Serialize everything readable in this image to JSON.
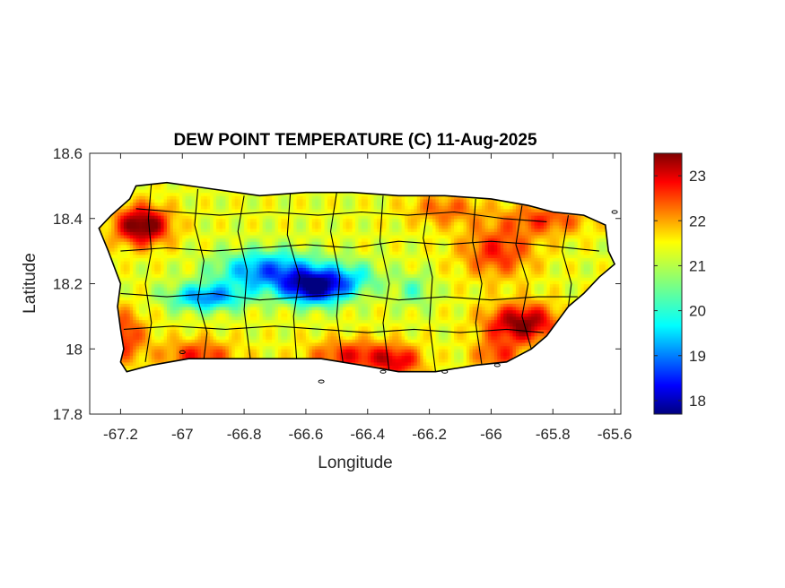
{
  "chart_data": {
    "type": "heatmap",
    "title": "DEW POINT TEMPERATURE (C) 11-Aug-2025",
    "xlabel": "Longitude",
    "ylabel": "Latitude",
    "xlim": [
      -67.3,
      -65.58
    ],
    "ylim": [
      17.8,
      18.6
    ],
    "xticks": [
      -67.2,
      -67,
      -66.8,
      -66.6,
      -66.4,
      -66.2,
      -66,
      -65.8,
      -65.6
    ],
    "xtick_labels": [
      "-67.2",
      "-67",
      "-66.8",
      "-66.6",
      "-66.4",
      "-66.2",
      "-66",
      "-65.8",
      "-65.6"
    ],
    "yticks": [
      17.8,
      18,
      18.2,
      18.4,
      18.6
    ],
    "ytick_labels": [
      "17.8",
      "18",
      "18.2",
      "18.4",
      "18.6"
    ],
    "colorbar": {
      "colormap": "jet",
      "range": [
        17.7,
        23.5
      ],
      "ticks": [
        18,
        19,
        20,
        21,
        22,
        23
      ],
      "tick_labels": [
        "18",
        "19",
        "20",
        "21",
        "22",
        "23"
      ]
    },
    "grid": false,
    "field": {
      "base": 21.2,
      "anomalies": [
        {
          "lon": -66.57,
          "lat": 18.19,
          "amp": -3.4,
          "rx": 0.1,
          "ry": 0.05
        },
        {
          "lon": -66.72,
          "lat": 18.24,
          "amp": -2.2,
          "rx": 0.16,
          "ry": 0.06
        },
        {
          "lon": -66.92,
          "lat": 18.16,
          "amp": -2.0,
          "rx": 0.12,
          "ry": 0.04
        },
        {
          "lon": -66.45,
          "lat": 18.22,
          "amp": -1.0,
          "rx": 0.1,
          "ry": 0.05
        },
        {
          "lon": -66.25,
          "lat": 18.18,
          "amp": -0.8,
          "rx": 0.06,
          "ry": 0.05
        },
        {
          "lon": -67.13,
          "lat": 18.38,
          "amp": 2.6,
          "rx": 0.09,
          "ry": 0.06
        },
        {
          "lon": -67.2,
          "lat": 18.04,
          "amp": 1.5,
          "rx": 0.08,
          "ry": 0.08
        },
        {
          "lon": -66.95,
          "lat": 17.98,
          "amp": 1.4,
          "rx": 0.12,
          "ry": 0.05
        },
        {
          "lon": -66.45,
          "lat": 17.98,
          "amp": 1.5,
          "rx": 0.14,
          "ry": 0.05
        },
        {
          "lon": -66.3,
          "lat": 17.96,
          "amp": 1.4,
          "rx": 0.08,
          "ry": 0.05
        },
        {
          "lon": -65.9,
          "lat": 18.08,
          "amp": 2.3,
          "rx": 0.12,
          "ry": 0.06
        },
        {
          "lon": -65.98,
          "lat": 18.3,
          "amp": 1.4,
          "rx": 0.12,
          "ry": 0.08
        },
        {
          "lon": -65.82,
          "lat": 18.4,
          "amp": 1.2,
          "rx": 0.14,
          "ry": 0.05
        },
        {
          "lon": -66.15,
          "lat": 18.43,
          "amp": 1.0,
          "rx": 0.12,
          "ry": 0.05
        },
        {
          "lon": -65.98,
          "lat": 17.98,
          "amp": 1.2,
          "rx": 0.08,
          "ry": 0.05
        }
      ]
    },
    "island_outline": [
      [
        -67.27,
        18.37
      ],
      [
        -67.23,
        18.41
      ],
      [
        -67.17,
        18.46
      ],
      [
        -67.15,
        18.5
      ],
      [
        -67.05,
        18.51
      ],
      [
        -66.9,
        18.49
      ],
      [
        -66.75,
        18.47
      ],
      [
        -66.6,
        18.48
      ],
      [
        -66.45,
        18.48
      ],
      [
        -66.3,
        18.47
      ],
      [
        -66.15,
        18.47
      ],
      [
        -66.0,
        18.46
      ],
      [
        -65.88,
        18.44
      ],
      [
        -65.8,
        18.42
      ],
      [
        -65.7,
        18.41
      ],
      [
        -65.63,
        18.38
      ],
      [
        -65.62,
        18.3
      ],
      [
        -65.6,
        18.26
      ],
      [
        -65.65,
        18.22
      ],
      [
        -65.7,
        18.17
      ],
      [
        -65.75,
        18.13
      ],
      [
        -65.82,
        18.04
      ],
      [
        -65.87,
        18.0
      ],
      [
        -65.95,
        17.96
      ],
      [
        -66.05,
        17.95
      ],
      [
        -66.18,
        17.93
      ],
      [
        -66.3,
        17.93
      ],
      [
        -66.42,
        17.95
      ],
      [
        -66.55,
        17.97
      ],
      [
        -66.7,
        17.97
      ],
      [
        -66.85,
        17.97
      ],
      [
        -66.98,
        17.97
      ],
      [
        -67.1,
        17.95
      ],
      [
        -67.18,
        17.93
      ],
      [
        -67.2,
        17.96
      ],
      [
        -67.19,
        18.0
      ],
      [
        -67.2,
        18.06
      ],
      [
        -67.21,
        18.13
      ],
      [
        -67.2,
        18.2
      ],
      [
        -67.24,
        18.3
      ],
      [
        -67.27,
        18.37
      ]
    ],
    "municipal_boundaries": [
      [
        [
          -67.1,
          18.51
        ],
        [
          -67.11,
          18.4
        ],
        [
          -67.1,
          18.3
        ],
        [
          -67.12,
          18.2
        ],
        [
          -67.1,
          18.08
        ],
        [
          -67.12,
          17.96
        ]
      ],
      [
        [
          -66.95,
          18.49
        ],
        [
          -66.96,
          18.38
        ],
        [
          -66.93,
          18.27
        ],
        [
          -66.95,
          18.15
        ],
        [
          -66.92,
          18.05
        ],
        [
          -66.93,
          17.97
        ]
      ],
      [
        [
          -66.8,
          18.47
        ],
        [
          -66.82,
          18.36
        ],
        [
          -66.79,
          18.24
        ],
        [
          -66.8,
          18.12
        ],
        [
          -66.78,
          17.97
        ]
      ],
      [
        [
          -66.65,
          18.48
        ],
        [
          -66.66,
          18.35
        ],
        [
          -66.62,
          18.22
        ],
        [
          -66.64,
          18.1
        ],
        [
          -66.63,
          17.97
        ]
      ],
      [
        [
          -66.5,
          18.48
        ],
        [
          -66.52,
          18.36
        ],
        [
          -66.49,
          18.22
        ],
        [
          -66.5,
          18.1
        ],
        [
          -66.48,
          17.96
        ]
      ],
      [
        [
          -66.35,
          18.47
        ],
        [
          -66.36,
          18.33
        ],
        [
          -66.33,
          18.2
        ],
        [
          -66.35,
          18.08
        ],
        [
          -66.33,
          17.93
        ]
      ],
      [
        [
          -66.2,
          18.47
        ],
        [
          -66.22,
          18.34
        ],
        [
          -66.19,
          18.22
        ],
        [
          -66.2,
          18.08
        ],
        [
          -66.18,
          17.93
        ]
      ],
      [
        [
          -66.05,
          18.46
        ],
        [
          -66.06,
          18.33
        ],
        [
          -66.03,
          18.2
        ],
        [
          -66.05,
          18.08
        ],
        [
          -66.03,
          17.95
        ]
      ],
      [
        [
          -65.9,
          18.44
        ],
        [
          -65.92,
          18.32
        ],
        [
          -65.88,
          18.2
        ],
        [
          -65.9,
          18.1
        ],
        [
          -65.87,
          18.0
        ]
      ],
      [
        [
          -65.75,
          18.41
        ],
        [
          -65.77,
          18.3
        ],
        [
          -65.74,
          18.2
        ],
        [
          -65.75,
          18.13
        ]
      ],
      [
        [
          -67.2,
          18.3
        ],
        [
          -67.05,
          18.31
        ],
        [
          -66.9,
          18.3
        ],
        [
          -66.75,
          18.31
        ],
        [
          -66.6,
          18.32
        ],
        [
          -66.45,
          18.31
        ],
        [
          -66.3,
          18.33
        ],
        [
          -66.15,
          18.32
        ],
        [
          -66.0,
          18.33
        ],
        [
          -65.85,
          18.32
        ],
        [
          -65.65,
          18.3
        ]
      ],
      [
        [
          -67.2,
          18.17
        ],
        [
          -67.05,
          18.16
        ],
        [
          -66.9,
          18.17
        ],
        [
          -66.75,
          18.15
        ],
        [
          -66.6,
          18.16
        ],
        [
          -66.45,
          18.17
        ],
        [
          -66.3,
          18.15
        ],
        [
          -66.15,
          18.16
        ],
        [
          -66.0,
          18.15
        ],
        [
          -65.85,
          18.16
        ],
        [
          -65.72,
          18.16
        ]
      ],
      [
        [
          -67.15,
          18.43
        ],
        [
          -67.02,
          18.42
        ],
        [
          -66.88,
          18.41
        ],
        [
          -66.72,
          18.42
        ],
        [
          -66.56,
          18.41
        ],
        [
          -66.42,
          18.42
        ],
        [
          -66.27,
          18.41
        ],
        [
          -66.12,
          18.42
        ],
        [
          -65.96,
          18.4
        ],
        [
          -65.82,
          18.39
        ]
      ],
      [
        [
          -67.19,
          18.06
        ],
        [
          -67.03,
          18.07
        ],
        [
          -66.86,
          18.06
        ],
        [
          -66.7,
          18.07
        ],
        [
          -66.55,
          18.06
        ],
        [
          -66.4,
          18.05
        ],
        [
          -66.25,
          18.06
        ],
        [
          -66.1,
          18.05
        ],
        [
          -65.95,
          18.06
        ],
        [
          -65.83,
          18.05
        ]
      ]
    ],
    "small_islands": [
      {
        "lon": -66.55,
        "lat": 17.9
      },
      {
        "lon": -67.0,
        "lat": 17.99
      },
      {
        "lon": -66.15,
        "lat": 17.93
      },
      {
        "lon": -65.98,
        "lat": 17.95
      },
      {
        "lon": -66.35,
        "lat": 17.93
      },
      {
        "lon": -65.6,
        "lat": 18.42
      }
    ]
  }
}
